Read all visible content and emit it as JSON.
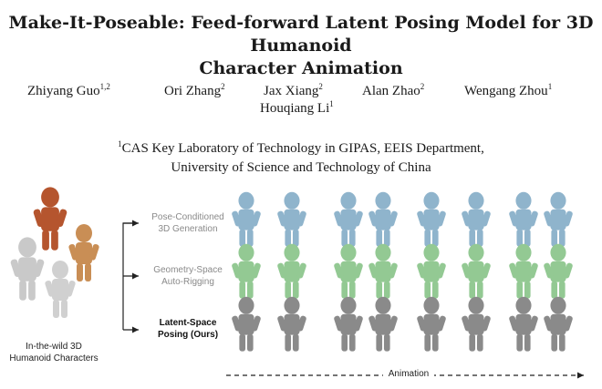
{
  "paper": {
    "title_line1": "Make-It-Poseable: Feed-forward Latent Posing Model for 3D Humanoid",
    "title_line2": "Character Animation",
    "authors": [
      {
        "name": "Zhiyang Guo",
        "sup": "1,2"
      },
      {
        "name": "Ori Zhang",
        "sup": "2"
      },
      {
        "name": "Jax Xiang",
        "sup": "2"
      },
      {
        "name": "Alan Zhao",
        "sup": "2"
      },
      {
        "name": "Wengang Zhou",
        "sup": "1"
      },
      {
        "name": "Houqiang Li",
        "sup": "1"
      }
    ],
    "affiliation_sup": "1",
    "affiliation_line1": "CAS Key Laboratory of Technology in GIPAS, EEIS Department,",
    "affiliation_line2": "University of Science and Technology of China"
  },
  "figure": {
    "input_label_line1": "In-the-wild 3D",
    "input_label_line2": "Humanoid Characters",
    "methods": [
      {
        "line1": "Pose-Conditioned",
        "line2": "3D Generation",
        "color": "#8fb4cc"
      },
      {
        "line1": "Geometry-Space",
        "line2": "Auto-Rigging",
        "color": "#93c993"
      },
      {
        "line1": "Latent-Space",
        "line2": "Posing (Ours)",
        "color": "#8a8a8a"
      }
    ],
    "animation_label": "Animation"
  }
}
